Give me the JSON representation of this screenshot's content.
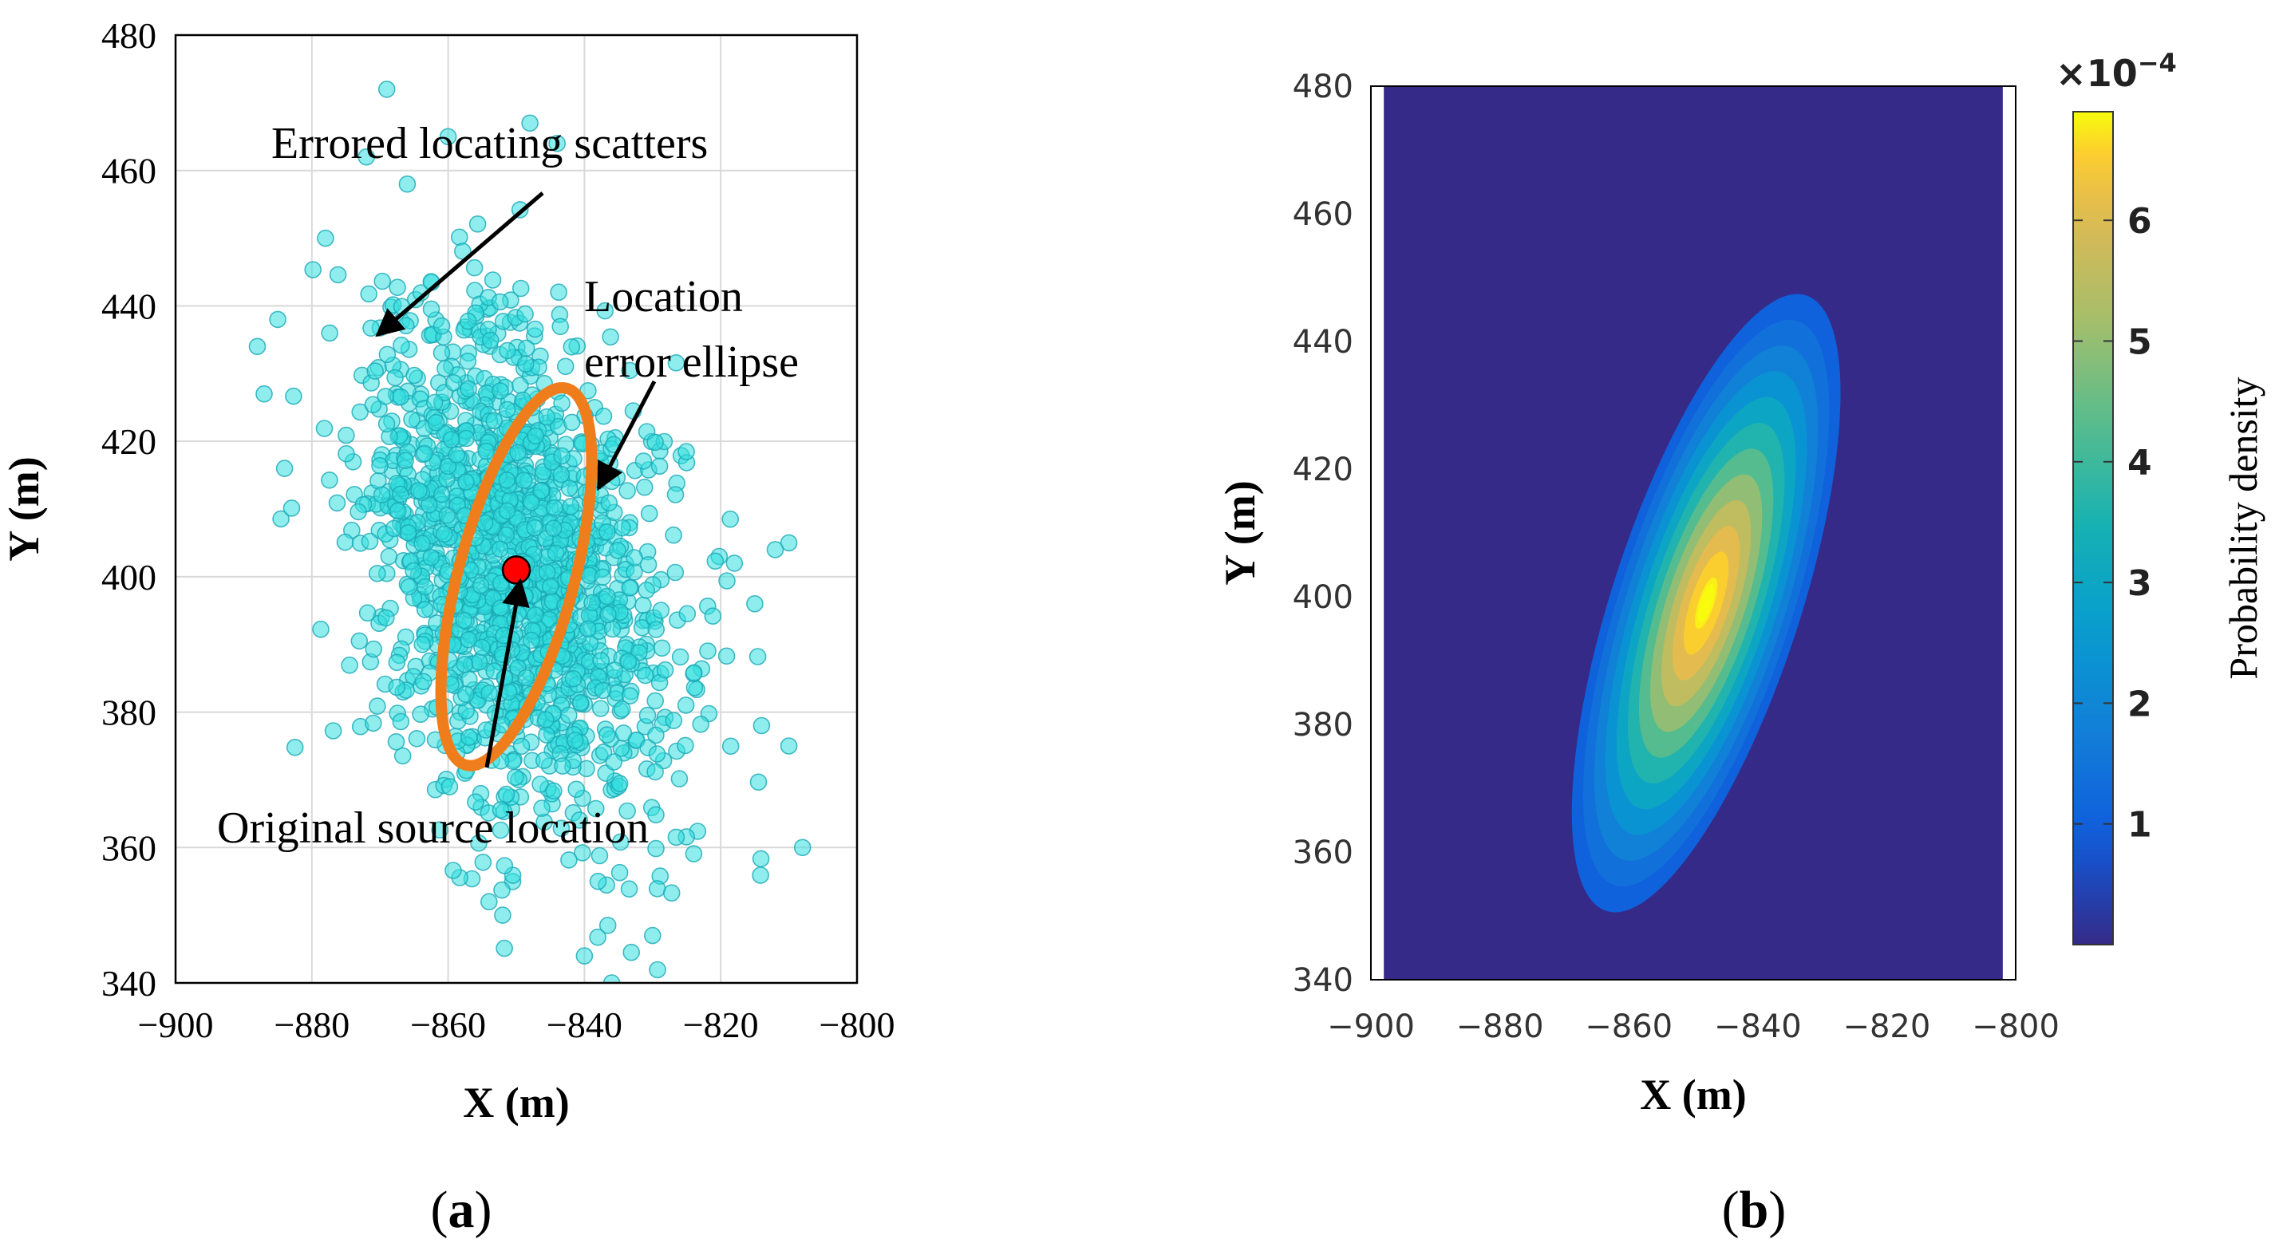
{
  "colors": {
    "scatter_fill": "#33dede",
    "scatter_stroke": "#1aa9b5",
    "ellipse": "#f07d1c",
    "source": "#ff0000",
    "grid": "#d9d9d9",
    "density_bg": "#352a87"
  },
  "chart_data": [
    {
      "id": "a",
      "type": "scatter",
      "panel_label": "a",
      "xlabel": "X (m)",
      "ylabel": "Y (m)",
      "xlim": [
        -900,
        -800
      ],
      "ylim": [
        340,
        480
      ],
      "xticks": [
        -900,
        -880,
        -860,
        -840,
        -820,
        -800
      ],
      "yticks": [
        340,
        360,
        380,
        400,
        420,
        440,
        460,
        480
      ],
      "xtick_labels": [
        "−900",
        "−880",
        "−860",
        "−840",
        "−820",
        "−800"
      ],
      "ytick_labels": [
        "340",
        "360",
        "380",
        "400",
        "420",
        "440",
        "460",
        "480"
      ],
      "grid": true,
      "scatter": {
        "name": "Errored locating scatters",
        "count": 1500,
        "mean": [
          -850,
          401
        ],
        "std_x": 11.5,
        "std_y": 18.5,
        "corr": -0.32,
        "seed": 7,
        "outliers": [
          [
            -869,
            472
          ],
          [
            -848,
            467
          ],
          [
            -860,
            465
          ],
          [
            -887,
            427
          ],
          [
            -888,
            434
          ],
          [
            -885,
            438
          ],
          [
            -884,
            416
          ],
          [
            -810,
            405
          ],
          [
            -812,
            404
          ],
          [
            -808,
            360
          ],
          [
            -836,
            340
          ],
          [
            -840,
            344
          ],
          [
            -830,
            347
          ],
          [
            -838,
            355
          ],
          [
            -854,
            352
          ],
          [
            -852,
            350
          ],
          [
            -818,
            402
          ],
          [
            -815,
            396
          ],
          [
            -814,
            378
          ],
          [
            -810,
            375
          ],
          [
            -872,
            462
          ],
          [
            -866,
            458
          ],
          [
            -844,
            464
          ],
          [
            -878,
            450
          ]
        ]
      },
      "ellipse": {
        "name": "Location error ellipse",
        "center": [
          -850,
          400
        ],
        "semi_axes_data": [
          8.5,
          28.8
        ],
        "tilt_deg": 15
      },
      "source": {
        "name": "Original source location",
        "x": -850,
        "y": 401
      },
      "annotations": [
        {
          "id": "scatter-label",
          "lines": [
            "Errored locating scatters"
          ],
          "arrow_to": [
            -871,
            435
          ]
        },
        {
          "id": "ellipse-label",
          "lines": [
            "Location",
            "error ellipse"
          ],
          "arrow_to": [
            -836,
            412
          ]
        },
        {
          "id": "source-label",
          "lines": [
            "Original source location"
          ],
          "arrow_to": [
            -849,
            400
          ]
        }
      ]
    },
    {
      "id": "b",
      "type": "heatmap",
      "panel_label": "b",
      "xlabel": "X (m)",
      "ylabel": "Y (m)",
      "xlim": [
        -900,
        -800
      ],
      "ylim": [
        340,
        480
      ],
      "xticks": [
        -900,
        -880,
        -860,
        -840,
        -820,
        -800
      ],
      "yticks": [
        340,
        360,
        380,
        400,
        420,
        440,
        460,
        480
      ],
      "xtick_labels": [
        "−900",
        "−880",
        "−860",
        "−840",
        "−820",
        "−800"
      ],
      "ytick_labels": [
        "340",
        "360",
        "380",
        "400",
        "420",
        "440",
        "460",
        "480"
      ],
      "data_xrange": [
        -898,
        -802
      ],
      "density": {
        "mean": [
          -848,
          399
        ],
        "sigma_minor": 7.5,
        "sigma_major": 26,
        "tilt_deg": 18,
        "peak": 6.9,
        "levels": 12
      },
      "colorbar": {
        "label": "Probability density",
        "exponent_text": "×10",
        "exponent_power": "−4",
        "range": [
          0,
          6.9
        ],
        "ticks": [
          1,
          2,
          3,
          4,
          5,
          6
        ],
        "tick_labels": [
          "1",
          "2",
          "3",
          "4",
          "5",
          "6"
        ]
      }
    }
  ]
}
